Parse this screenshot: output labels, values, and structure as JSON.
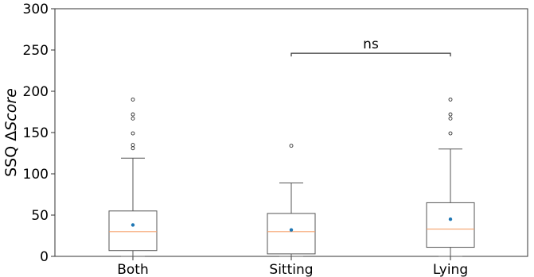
{
  "chart_data": {
    "type": "box",
    "ylabel_prefix": "SSQ Δ",
    "ylabel_italic": "Score",
    "ylim": [
      0,
      300
    ],
    "yticks": [
      0,
      50,
      100,
      150,
      200,
      250,
      300
    ],
    "categories": [
      "Both",
      "Sitting",
      "Lying"
    ],
    "boxes": [
      {
        "category": "Both",
        "whisker_low": 0,
        "q1": 7,
        "median": 30,
        "q3": 55,
        "whisker_high": 119,
        "mean": 38,
        "outliers": [
          131,
          135,
          149,
          167,
          172,
          190
        ]
      },
      {
        "category": "Sitting",
        "whisker_low": 0,
        "q1": 3,
        "median": 30,
        "q3": 52,
        "whisker_high": 89,
        "mean": 32,
        "outliers": [
          134
        ]
      },
      {
        "category": "Lying",
        "whisker_low": 0,
        "q1": 11,
        "median": 33,
        "q3": 65,
        "whisker_high": 130,
        "mean": 45,
        "outliers": [
          149,
          167,
          172,
          190
        ]
      }
    ],
    "annotations": [
      {
        "text": "ns",
        "from": "Sitting",
        "to": "Lying",
        "y": 246
      }
    ],
    "colors": {
      "box": "#555555",
      "median": "#f5a06a",
      "mean": "#1f77b4",
      "axis": "#333333"
    }
  }
}
